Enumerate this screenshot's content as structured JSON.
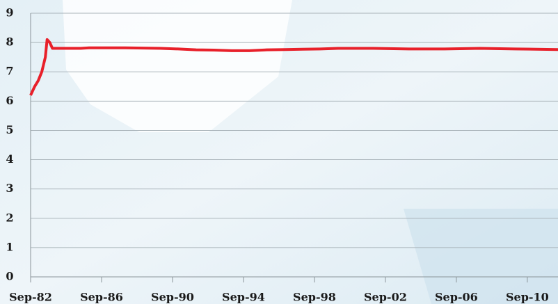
{
  "chart_data": {
    "type": "line",
    "x": [
      1982.67,
      1982.9,
      1983.1,
      1983.3,
      1983.5,
      1983.6,
      1983.75,
      1983.9,
      1984.5,
      1985.5,
      1986,
      1988,
      1990,
      1991,
      1992,
      1993,
      1994,
      1995,
      1996,
      1997,
      1998,
      1999,
      2000,
      2002,
      2004,
      2006,
      2008,
      2010,
      2012.4
    ],
    "series": [
      {
        "color": "#e8202a",
        "values": [
          6.2,
          6.5,
          6.7,
          7.0,
          7.5,
          8.1,
          8.0,
          7.8,
          7.8,
          7.8,
          7.82,
          7.82,
          7.8,
          7.78,
          7.75,
          7.74,
          7.72,
          7.72,
          7.75,
          7.76,
          7.77,
          7.78,
          7.8,
          7.8,
          7.78,
          7.78,
          7.8,
          7.78,
          7.76
        ]
      }
    ],
    "xlim": [
      1982.67,
      2012.4
    ],
    "xticks": [
      {
        "value": 1982.67,
        "label": "Sep-82"
      },
      {
        "value": 1986.67,
        "label": "Sep-86"
      },
      {
        "value": 1990.67,
        "label": "Sep-90"
      },
      {
        "value": 1994.67,
        "label": "Sep-94"
      },
      {
        "value": 1998.67,
        "label": "Sep-98"
      },
      {
        "value": 2002.67,
        "label": "Sep-02"
      },
      {
        "value": 2006.67,
        "label": "Sep-06"
      },
      {
        "value": 2010.67,
        "label": "Sep-10"
      }
    ],
    "ylim": [
      0,
      9
    ],
    "yticks": [
      0,
      1,
      2,
      3,
      4,
      5,
      6,
      7,
      8,
      9
    ],
    "grid": true
  }
}
